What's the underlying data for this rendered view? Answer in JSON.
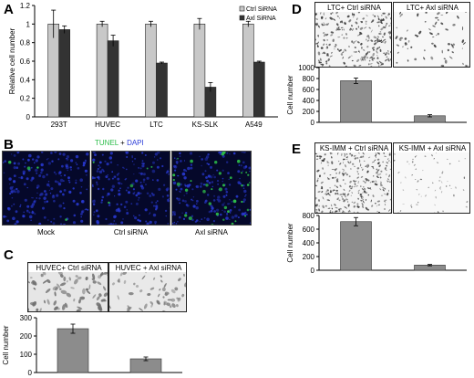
{
  "panels": {
    "a": "A",
    "b": "B",
    "c": "C",
    "d": "D",
    "e": "E"
  },
  "panel_b": {
    "stain_tunel": "TUNEL",
    "stain_plus": " + ",
    "stain_dapi": "DAPI",
    "captions": [
      "Mock",
      "Ctrl siRNA",
      "Axl siRNA"
    ],
    "colors": {
      "tunel": "#2dbd4a",
      "dapi": "#2a3bd9"
    }
  },
  "panel_c": {
    "image_captions": [
      "HUVEC+ Ctrl siRNA",
      "HUVEC + Axl siRNA"
    ]
  },
  "panel_d": {
    "image_captions": [
      "LTC+ Ctrl siRNA",
      "LTC+ Axl siRNA"
    ]
  },
  "panel_e": {
    "image_captions": [
      "KS-IMM + Ctrl siRNA",
      "KS-IMM + Axl siRNA"
    ]
  },
  "chart_data": [
    {
      "id": "A",
      "type": "bar",
      "categories": [
        "293T",
        "HUVEC",
        "LTC",
        "KS-SLK",
        "A549"
      ],
      "series": [
        {
          "name": "Ctrl SiRNA",
          "values": [
            1.0,
            1.0,
            1.0,
            1.0,
            1.0
          ],
          "errors": [
            0.15,
            0.03,
            0.03,
            0.06,
            0.03
          ],
          "color": "#c8c8c8"
        },
        {
          "name": "Axl SiRNA",
          "values": [
            0.94,
            0.82,
            0.58,
            0.32,
            0.59
          ],
          "errors": [
            0.04,
            0.06,
            0.01,
            0.05,
            0.01
          ],
          "color": "#333333"
        }
      ],
      "ylabel": "Relative cell number",
      "ylim": [
        0,
        1.2
      ],
      "yticks": [
        "0",
        "0.2",
        "0.4",
        "0.6",
        "0.8",
        "1",
        "1.2"
      ],
      "legend": "top-right",
      "grid": false
    },
    {
      "id": "C",
      "type": "bar",
      "categories": [
        "HUVEC+ Ctrl siRNA",
        "HUVEC + Axl siRNA"
      ],
      "values": [
        240,
        75
      ],
      "errors": [
        25,
        10
      ],
      "ylabel": "Cell number",
      "ylim": [
        0,
        300
      ],
      "yticks": [
        "0",
        "100",
        "200",
        "300"
      ],
      "color": "#8c8c8c"
    },
    {
      "id": "D",
      "type": "bar",
      "categories": [
        "LTC+ Ctrl siRNA",
        "LTC+ Axl siRNA"
      ],
      "values": [
        760,
        120
      ],
      "errors": [
        50,
        20
      ],
      "ylabel": "Cell number",
      "ylim": [
        0,
        1000
      ],
      "yticks": [
        "0",
        "200",
        "400",
        "600",
        "800",
        "1000"
      ],
      "color": "#8c8c8c"
    },
    {
      "id": "E",
      "type": "bar",
      "categories": [
        "KS-IMM + Ctrl siRNA",
        "KS-IMM + Axl siRNA"
      ],
      "values": [
        710,
        75
      ],
      "errors": [
        60,
        10
      ],
      "ylabel": "Cell number",
      "ylim": [
        0,
        800
      ],
      "yticks": [
        "0",
        "200",
        "400",
        "600",
        "800"
      ],
      "color": "#8c8c8c"
    }
  ]
}
